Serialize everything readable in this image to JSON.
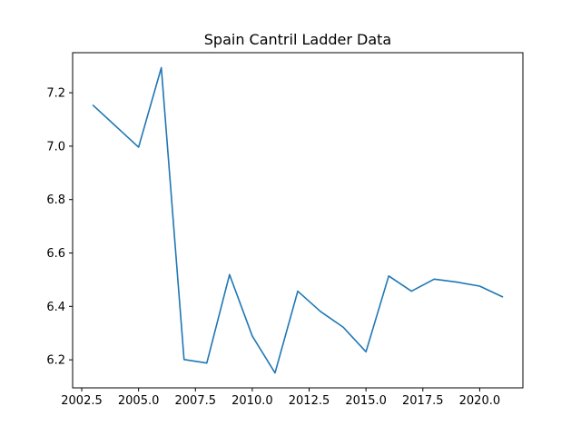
{
  "chart_data": {
    "type": "line",
    "title": "Spain Cantril Ladder Data",
    "xlabel": "",
    "ylabel": "",
    "xlim": [
      2002.1,
      2021.9
    ],
    "ylim": [
      6.095,
      7.35
    ],
    "xticks": [
      2002.5,
      2005.0,
      2007.5,
      2010.0,
      2012.5,
      2015.0,
      2017.5,
      2020.0
    ],
    "xtick_labels": [
      "2002.5",
      "2005.0",
      "2007.5",
      "2010.0",
      "2012.5",
      "2015.0",
      "2017.5",
      "2020.0"
    ],
    "yticks": [
      6.2,
      6.4,
      6.6,
      6.8,
      7.0,
      7.2
    ],
    "ytick_labels": [
      "6.2",
      "6.4",
      "6.6",
      "6.8",
      "7.0",
      "7.2"
    ],
    "grid": false,
    "colors": {
      "line": "#1f77b4"
    },
    "series": [
      {
        "x": [
          2003,
          2005,
          2006,
          2007,
          2008,
          2009,
          2010,
          2011,
          2012,
          2013,
          2014,
          2015,
          2016,
          2017,
          2018,
          2019,
          2020,
          2021
        ],
        "y": [
          7.153,
          6.996,
          7.294,
          6.201,
          6.188,
          6.519,
          6.289,
          6.151,
          6.457,
          6.381,
          6.322,
          6.23,
          6.514,
          6.457,
          6.502,
          6.491,
          6.476,
          6.436
        ]
      }
    ]
  }
}
